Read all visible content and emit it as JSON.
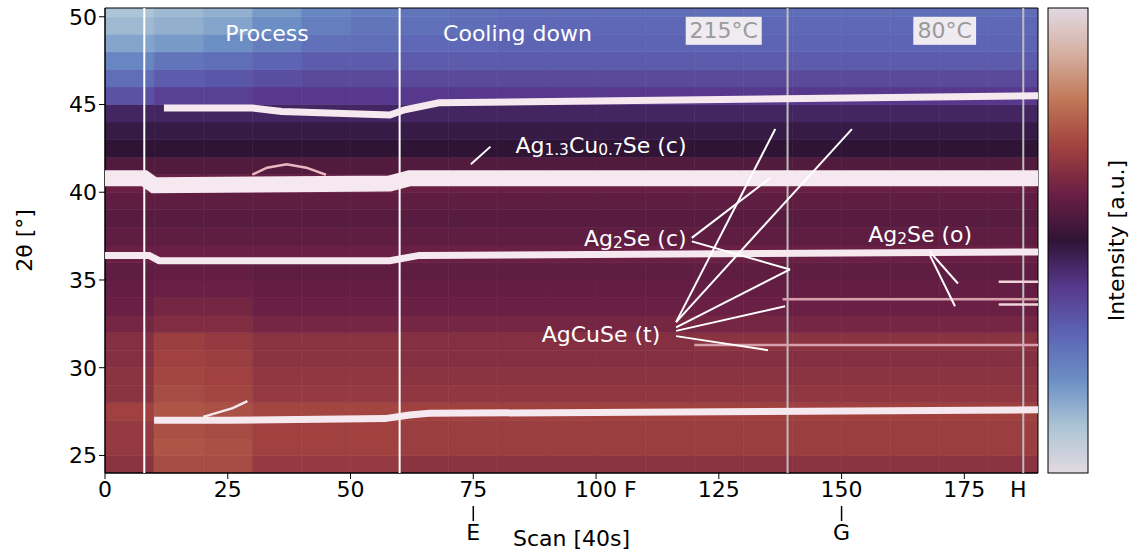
{
  "chart_data": {
    "type": "heatmap",
    "xlabel": "Scan [40s]",
    "ylabel": "2θ [°]",
    "xlim": [
      0,
      190
    ],
    "ylim": [
      24,
      50.5
    ],
    "xticks": [
      0,
      25,
      50,
      75,
      100,
      125,
      150,
      175
    ],
    "yticks": [
      25,
      30,
      35,
      40,
      45,
      50
    ],
    "colorbar": {
      "label": "Intensity [a.u.]",
      "range": [
        0,
        1
      ]
    },
    "x_bins": [
      0,
      10,
      20,
      30,
      40,
      50,
      60,
      70,
      80,
      90,
      100,
      110,
      120,
      130,
      140,
      150,
      160,
      170,
      180,
      190
    ],
    "y_bins": [
      24,
      25,
      26,
      27,
      28,
      29,
      30,
      31,
      32,
      33,
      34,
      35,
      36,
      37,
      38,
      39,
      40,
      41,
      42,
      43,
      44,
      45,
      46,
      47,
      48,
      49,
      50,
      50.5
    ],
    "cells": [
      [
        0.66,
        0.72,
        0.72,
        0.68,
        0.68,
        0.68,
        0.66,
        0.66,
        0.66,
        0.66,
        0.66,
        0.66,
        0.66,
        0.66,
        0.66,
        0.66,
        0.66,
        0.66,
        0.66
      ],
      [
        0.68,
        0.74,
        0.73,
        0.7,
        0.7,
        0.7,
        0.69,
        0.69,
        0.69,
        0.69,
        0.69,
        0.69,
        0.69,
        0.69,
        0.69,
        0.69,
        0.69,
        0.69,
        0.69
      ],
      [
        0.68,
        0.73,
        0.72,
        0.7,
        0.7,
        0.7,
        0.69,
        0.69,
        0.69,
        0.69,
        0.69,
        0.69,
        0.69,
        0.69,
        0.69,
        0.69,
        0.69,
        0.69,
        0.69
      ],
      [
        0.7,
        0.74,
        0.73,
        0.71,
        0.71,
        0.71,
        0.7,
        0.7,
        0.7,
        0.7,
        0.7,
        0.7,
        0.7,
        0.7,
        0.7,
        0.7,
        0.7,
        0.7,
        0.7
      ],
      [
        0.66,
        0.72,
        0.71,
        0.68,
        0.68,
        0.68,
        0.67,
        0.67,
        0.67,
        0.67,
        0.67,
        0.67,
        0.67,
        0.67,
        0.67,
        0.67,
        0.67,
        0.67,
        0.67
      ],
      [
        0.66,
        0.71,
        0.7,
        0.67,
        0.67,
        0.67,
        0.66,
        0.66,
        0.66,
        0.66,
        0.66,
        0.66,
        0.66,
        0.66,
        0.66,
        0.66,
        0.66,
        0.66,
        0.66
      ],
      [
        0.65,
        0.7,
        0.69,
        0.66,
        0.66,
        0.66,
        0.65,
        0.65,
        0.65,
        0.65,
        0.65,
        0.65,
        0.65,
        0.65,
        0.65,
        0.65,
        0.65,
        0.65,
        0.65
      ],
      [
        0.65,
        0.69,
        0.68,
        0.66,
        0.66,
        0.66,
        0.65,
        0.65,
        0.65,
        0.65,
        0.65,
        0.65,
        0.66,
        0.66,
        0.66,
        0.66,
        0.66,
        0.66,
        0.66
      ],
      [
        0.62,
        0.64,
        0.64,
        0.62,
        0.62,
        0.62,
        0.62,
        0.62,
        0.62,
        0.62,
        0.62,
        0.62,
        0.62,
        0.62,
        0.62,
        0.62,
        0.62,
        0.62,
        0.62
      ],
      [
        0.6,
        0.62,
        0.62,
        0.6,
        0.6,
        0.6,
        0.6,
        0.6,
        0.6,
        0.6,
        0.6,
        0.6,
        0.6,
        0.6,
        0.6,
        0.6,
        0.6,
        0.6,
        0.6
      ],
      [
        0.59,
        0.6,
        0.6,
        0.59,
        0.59,
        0.59,
        0.59,
        0.59,
        0.59,
        0.59,
        0.59,
        0.59,
        0.59,
        0.59,
        0.59,
        0.59,
        0.59,
        0.59,
        0.59
      ],
      [
        0.58,
        0.59,
        0.59,
        0.58,
        0.58,
        0.58,
        0.58,
        0.58,
        0.58,
        0.58,
        0.58,
        0.58,
        0.58,
        0.58,
        0.58,
        0.58,
        0.58,
        0.58,
        0.58
      ],
      [
        0.6,
        0.6,
        0.6,
        0.6,
        0.6,
        0.6,
        0.6,
        0.6,
        0.6,
        0.6,
        0.6,
        0.6,
        0.6,
        0.6,
        0.6,
        0.6,
        0.6,
        0.6,
        0.6
      ],
      [
        0.58,
        0.58,
        0.58,
        0.58,
        0.58,
        0.58,
        0.58,
        0.58,
        0.58,
        0.58,
        0.58,
        0.58,
        0.58,
        0.58,
        0.58,
        0.58,
        0.58,
        0.58,
        0.58
      ],
      [
        0.57,
        0.57,
        0.57,
        0.57,
        0.57,
        0.57,
        0.57,
        0.57,
        0.57,
        0.57,
        0.57,
        0.57,
        0.57,
        0.57,
        0.57,
        0.57,
        0.57,
        0.57,
        0.57
      ],
      [
        0.58,
        0.58,
        0.58,
        0.58,
        0.58,
        0.58,
        0.58,
        0.58,
        0.58,
        0.58,
        0.58,
        0.58,
        0.58,
        0.58,
        0.58,
        0.58,
        0.58,
        0.58,
        0.58
      ],
      [
        0.6,
        0.6,
        0.6,
        0.6,
        0.6,
        0.6,
        0.6,
        0.6,
        0.6,
        0.6,
        0.6,
        0.6,
        0.6,
        0.6,
        0.6,
        0.6,
        0.6,
        0.6,
        0.6
      ],
      [
        0.56,
        0.56,
        0.56,
        0.56,
        0.56,
        0.56,
        0.56,
        0.56,
        0.56,
        0.56,
        0.56,
        0.56,
        0.56,
        0.56,
        0.56,
        0.56,
        0.56,
        0.56,
        0.56
      ],
      [
        0.5,
        0.5,
        0.5,
        0.5,
        0.5,
        0.5,
        0.5,
        0.5,
        0.5,
        0.5,
        0.5,
        0.5,
        0.5,
        0.5,
        0.5,
        0.5,
        0.5,
        0.5,
        0.5
      ],
      [
        0.48,
        0.48,
        0.48,
        0.48,
        0.48,
        0.48,
        0.48,
        0.48,
        0.48,
        0.48,
        0.48,
        0.48,
        0.48,
        0.48,
        0.48,
        0.48,
        0.48,
        0.48,
        0.48
      ],
      [
        0.45,
        0.45,
        0.45,
        0.45,
        0.45,
        0.45,
        0.45,
        0.45,
        0.45,
        0.45,
        0.45,
        0.45,
        0.45,
        0.45,
        0.45,
        0.45,
        0.45,
        0.45,
        0.45
      ],
      [
        0.34,
        0.38,
        0.38,
        0.4,
        0.4,
        0.4,
        0.4,
        0.4,
        0.4,
        0.4,
        0.4,
        0.4,
        0.4,
        0.4,
        0.4,
        0.4,
        0.4,
        0.4,
        0.4
      ],
      [
        0.28,
        0.32,
        0.33,
        0.35,
        0.36,
        0.36,
        0.36,
        0.36,
        0.36,
        0.36,
        0.36,
        0.36,
        0.36,
        0.36,
        0.36,
        0.36,
        0.36,
        0.36,
        0.36
      ],
      [
        0.22,
        0.26,
        0.28,
        0.3,
        0.32,
        0.32,
        0.32,
        0.32,
        0.32,
        0.32,
        0.32,
        0.32,
        0.32,
        0.32,
        0.32,
        0.32,
        0.32,
        0.32,
        0.32
      ],
      [
        0.16,
        0.18,
        0.2,
        0.24,
        0.27,
        0.28,
        0.29,
        0.29,
        0.3,
        0.3,
        0.3,
        0.3,
        0.3,
        0.3,
        0.3,
        0.3,
        0.3,
        0.3,
        0.3
      ],
      [
        0.12,
        0.14,
        0.16,
        0.2,
        0.24,
        0.26,
        0.27,
        0.28,
        0.29,
        0.29,
        0.29,
        0.29,
        0.29,
        0.29,
        0.29,
        0.29,
        0.29,
        0.29,
        0.29
      ],
      [
        0.1,
        0.12,
        0.14,
        0.18,
        0.22,
        0.24,
        0.26,
        0.27,
        0.28,
        0.28,
        0.28,
        0.28,
        0.28,
        0.28,
        0.28,
        0.28,
        0.28,
        0.28,
        0.28
      ]
    ],
    "series": [
      {
        "x": [
          10,
          25,
          57,
          62,
          66,
          190
        ],
        "values": [
          27.0,
          27.0,
          27.1,
          27.3,
          27.4,
          27.6
        ],
        "color": "#f6e8ef",
        "line_style": "solid"
      },
      {
        "x": [
          20,
          26,
          29
        ],
        "values": [
          27.2,
          27.7,
          28.1
        ],
        "color": "#f6e8ef",
        "line_style": "thin"
      },
      {
        "x": [
          0,
          9,
          11,
          58,
          64,
          190
        ],
        "values": [
          36.4,
          36.4,
          36.1,
          36.1,
          36.4,
          36.6
        ],
        "color": "#f6e8ef",
        "line_style": "solid"
      },
      {
        "x": [
          0,
          8,
          10,
          58,
          62,
          190
        ],
        "values": [
          40.8,
          40.8,
          40.4,
          40.5,
          40.8,
          40.8
        ],
        "color": "#f6e8ef",
        "line_style": "thick"
      },
      {
        "x": [
          30,
          33,
          37,
          41,
          45
        ],
        "values": [
          41.0,
          41.4,
          41.6,
          41.4,
          41.0
        ],
        "color": "#e7b7c2",
        "line_style": "thin"
      },
      {
        "x": [
          12,
          30,
          36,
          58,
          61,
          68,
          190
        ],
        "values": [
          44.8,
          44.8,
          44.6,
          44.4,
          44.7,
          45.1,
          45.5
        ],
        "color": "#f6e8ef",
        "line_style": "solid"
      },
      {
        "x": [
          120,
          190
        ],
        "values": [
          31.3,
          31.3
        ],
        "color": "#d8a0ad",
        "line_style": "thin"
      },
      {
        "x": [
          138,
          190
        ],
        "values": [
          33.9,
          33.9
        ],
        "color": "#d8a0ad",
        "line_style": "thin"
      },
      {
        "x": [
          182,
          190
        ],
        "values": [
          34.9,
          34.9
        ],
        "color": "#f0d4dc",
        "line_style": "thin"
      },
      {
        "x": [
          182,
          190
        ],
        "values": [
          33.6,
          33.6
        ],
        "color": "#f0d4dc",
        "line_style": "thin"
      }
    ],
    "vlines": [
      {
        "x": 8,
        "color": "#ffffff"
      },
      {
        "x": 60,
        "color": "#ffffff"
      },
      {
        "x": 139,
        "color": "#bdbdbd"
      },
      {
        "x": 187,
        "color": "#bdbdbd"
      }
    ],
    "annotations": [
      {
        "text": "Process",
        "x": 33,
        "y": 49.1,
        "color": "#ffffff"
      },
      {
        "text": "Cooling down",
        "x": 84,
        "y": 49.1,
        "color": "#ffffff"
      },
      {
        "text": "Ag1.3Cu0.7Se (c)",
        "x": 101,
        "y": 42.7,
        "color": "#ffffff"
      },
      {
        "text": "Ag2Se (c)",
        "x": 108,
        "y": 37.4,
        "color": "#ffffff"
      },
      {
        "text": "AgCuSe (t)",
        "x": 101,
        "y": 31.9,
        "color": "#ffffff"
      },
      {
        "text": "Ag2Se (o)",
        "x": 166,
        "y": 37.6,
        "color": "#ffffff"
      }
    ],
    "temperatures": [
      {
        "x": 126,
        "y": 49.2,
        "label": "215°C"
      },
      {
        "x": 171,
        "y": 49.2,
        "label": "80°C"
      }
    ],
    "leader_lines": [
      {
        "x": [
          74.5,
          78.5
        ],
        "y": [
          41.6,
          42.6
        ]
      },
      {
        "x": [
          119.5,
          135.4
        ],
        "y": [
          37.4,
          40.8
        ]
      },
      {
        "x": [
          119.5,
          139.5
        ],
        "y": [
          37.2,
          35.6
        ]
      },
      {
        "x": [
          116.3,
          136.5
        ],
        "y": [
          32.6,
          43.6
        ]
      },
      {
        "x": [
          116.3,
          152.1
        ],
        "y": [
          32.6,
          43.6
        ]
      },
      {
        "x": [
          116.3,
          139.5
        ],
        "y": [
          32.3,
          35.6
        ]
      },
      {
        "x": [
          116.3,
          138.5
        ],
        "y": [
          32.1,
          33.5
        ]
      },
      {
        "x": [
          116.3,
          135.0
        ],
        "y": [
          31.8,
          31.0
        ]
      },
      {
        "x": [
          168.0,
          173.7
        ],
        "y": [
          36.6,
          34.8
        ]
      },
      {
        "x": [
          168.0,
          173.1
        ],
        "y": [
          36.4,
          33.5
        ]
      }
    ],
    "markers": [
      {
        "value": 75,
        "label": "E"
      },
      {
        "value": 107,
        "label": "F"
      },
      {
        "value": 150,
        "label": "G"
      },
      {
        "value": 186,
        "label": "H"
      }
    ]
  }
}
